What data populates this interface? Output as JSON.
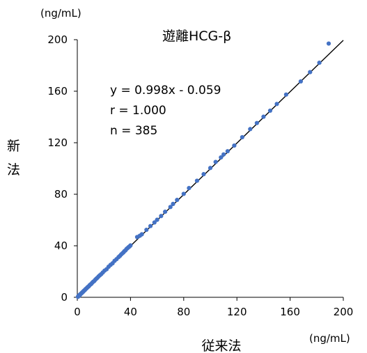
{
  "chart_data": {
    "type": "scatter",
    "title": "遊離HCG-β",
    "xlabel": "従来法",
    "ylabel": "新法",
    "x_unit": "(ng/mL)",
    "y_unit": "(ng/mL)",
    "xlim": [
      0,
      200
    ],
    "ylim": [
      0,
      200
    ],
    "x_ticks": [
      "0",
      "40",
      "80",
      "120",
      "160",
      "200"
    ],
    "y_ticks": [
      "0",
      "40",
      "80",
      "120",
      "160",
      "200"
    ],
    "grid": false,
    "legend": "none",
    "annotations": {
      "equation": "y = 0.998x - 0.059",
      "r": "r = 1.000",
      "n": "n = 385"
    },
    "regression": {
      "slope": 0.998,
      "intercept": -0.059
    },
    "marker_color": "#4472C4",
    "line_color": "#000000",
    "points": [
      [
        0.5,
        0.4
      ],
      [
        0.8,
        0.9
      ],
      [
        1.0,
        1.1
      ],
      [
        1.2,
        1.0
      ],
      [
        1.5,
        1.6
      ],
      [
        1.8,
        1.7
      ],
      [
        2.0,
        2.1
      ],
      [
        2.3,
        2.2
      ],
      [
        2.6,
        2.7
      ],
      [
        3.0,
        3.1
      ],
      [
        3.3,
        3.2
      ],
      [
        3.6,
        3.7
      ],
      [
        4.0,
        4.1
      ],
      [
        4.4,
        4.3
      ],
      [
        4.8,
        4.9
      ],
      [
        5.2,
        5.3
      ],
      [
        5.6,
        5.5
      ],
      [
        6.0,
        6.1
      ],
      [
        6.5,
        6.6
      ],
      [
        7.0,
        7.0
      ],
      [
        7.5,
        7.6
      ],
      [
        8.0,
        8.1
      ],
      [
        8.6,
        8.5
      ],
      [
        9.2,
        9.3
      ],
      [
        9.8,
        9.9
      ],
      [
        10.5,
        10.4
      ],
      [
        11.2,
        11.3
      ],
      [
        12.0,
        12.1
      ],
      [
        12.8,
        12.7
      ],
      [
        13.5,
        13.6
      ],
      [
        14.3,
        14.4
      ],
      [
        15.0,
        15.1
      ],
      [
        16.0,
        16.2
      ],
      [
        17.0,
        17.1
      ],
      [
        18.0,
        18.0
      ],
      [
        19.2,
        19.3
      ],
      [
        20.5,
        20.7
      ],
      [
        22.0,
        21.8
      ],
      [
        23.5,
        23.7
      ],
      [
        25.0,
        25.2
      ],
      [
        26.5,
        26.4
      ],
      [
        28.0,
        28.3
      ],
      [
        29.5,
        29.6
      ],
      [
        31.0,
        31.2
      ],
      [
        32.0,
        32.1
      ],
      [
        33.0,
        33.3
      ],
      [
        34.0,
        34.2
      ],
      [
        34.8,
        35.0
      ],
      [
        35.5,
        35.9
      ],
      [
        36.2,
        36.4
      ],
      [
        37.0,
        37.5
      ],
      [
        37.8,
        38.2
      ],
      [
        38.5,
        38.9
      ],
      [
        39.2,
        39.4
      ],
      [
        40.0,
        40.3
      ],
      [
        45.0,
        46.8
      ],
      [
        47.0,
        47.8
      ],
      [
        48.5,
        48.9
      ],
      [
        52.0,
        52.4
      ],
      [
        55.0,
        55.3
      ],
      [
        58.0,
        58.1
      ],
      [
        60.0,
        60.2
      ],
      [
        63.0,
        63.1
      ],
      [
        66.0,
        66.4
      ],
      [
        70.0,
        70.1
      ],
      [
        72.0,
        72.5
      ],
      [
        75.0,
        75.6
      ],
      [
        80.0,
        80.3
      ],
      [
        84.0,
        84.8
      ],
      [
        90.0,
        90.5
      ],
      [
        95.0,
        95.6
      ],
      [
        100.0,
        100.4
      ],
      [
        104.0,
        105.1
      ],
      [
        108.0,
        108.6
      ],
      [
        110.0,
        110.9
      ],
      [
        113.0,
        113.4
      ],
      [
        118.0,
        117.8
      ],
      [
        124.0,
        124.3
      ],
      [
        130.0,
        130.6
      ],
      [
        135.0,
        135.3
      ],
      [
        140.0,
        140.2
      ],
      [
        145.0,
        144.9
      ],
      [
        150.0,
        150.1
      ],
      [
        157.0,
        157.4
      ],
      [
        168.0,
        167.6
      ],
      [
        175.0,
        174.8
      ],
      [
        182.0,
        182.1
      ],
      [
        189.0,
        197.0
      ]
    ]
  }
}
